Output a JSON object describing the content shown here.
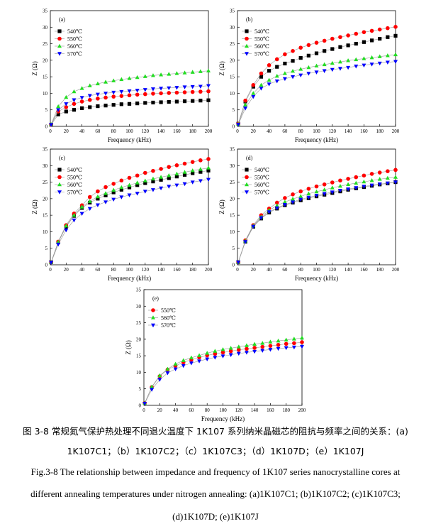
{
  "caption": {
    "cn_line1": "图 3-8  常规氮气保护热处理不同退火温度下 1K107 系列纳米晶磁芯的阻抗与频率之间的关系：(a)",
    "cn_line2": "1K107C1；（b）1K107C2；（c）1K107C3；（d）1K107D；（e）1K107J",
    "en_line1": "Fig.3-8 The relationship between impedance and frequency of 1K107 series nanocrystalline cores at",
    "en_line2": "different annealing temperatures under nitrogen annealing: (a)1K107C1; (b)1K107C2; (c)1K107C3;",
    "en_line3": "(d)1K107D; (e)1K107J"
  },
  "colors": {
    "540": "#000000",
    "550": "#ff0000",
    "560": "#22dd22",
    "570": "#0000ff"
  },
  "chart_data": [
    {
      "type": "line",
      "label": "(a)",
      "xlabel": "Frequency (kHz)",
      "ylabel": "Z (Ω)",
      "xlim": [
        0,
        200
      ],
      "ylim": [
        0,
        35
      ],
      "xticks": [
        0,
        20,
        40,
        60,
        80,
        100,
        120,
        140,
        160,
        180,
        200
      ],
      "yticks": [
        0,
        5,
        10,
        15,
        20,
        25,
        30,
        35
      ],
      "x": [
        1,
        10,
        20,
        30,
        40,
        50,
        60,
        70,
        80,
        90,
        100,
        110,
        120,
        130,
        140,
        150,
        160,
        170,
        180,
        190,
        200
      ],
      "legend_position": "top-left",
      "series": [
        {
          "name": "540℃",
          "marker": "square",
          "color": "#000000",
          "values": [
            0.5,
            3.6,
            4.5,
            5.0,
            5.5,
            5.8,
            6.1,
            6.3,
            6.5,
            6.7,
            6.8,
            6.95,
            7.1,
            7.2,
            7.3,
            7.4,
            7.5,
            7.6,
            7.7,
            7.8,
            7.9
          ]
        },
        {
          "name": "550℃",
          "marker": "circle",
          "color": "#ff0000",
          "values": [
            0.5,
            4.5,
            5.8,
            6.8,
            7.5,
            8.0,
            8.4,
            8.7,
            9.0,
            9.2,
            9.4,
            9.6,
            9.75,
            9.9,
            10.0,
            10.1,
            10.2,
            10.3,
            10.4,
            10.5,
            10.6
          ]
        },
        {
          "name": "560℃",
          "marker": "triangle-up",
          "color": "#22dd22",
          "values": [
            0.6,
            6.0,
            8.8,
            10.5,
            11.5,
            12.3,
            12.9,
            13.4,
            13.8,
            14.2,
            14.5,
            14.8,
            15.1,
            15.4,
            15.6,
            15.8,
            16.0,
            16.2,
            16.4,
            16.6,
            16.8
          ]
        },
        {
          "name": "570℃",
          "marker": "triangle-down",
          "color": "#0000ff",
          "values": [
            0.5,
            5.0,
            6.8,
            8.0,
            8.7,
            9.3,
            9.7,
            10.0,
            10.3,
            10.5,
            10.7,
            10.9,
            11.1,
            11.3,
            11.5,
            11.6,
            11.75,
            11.9,
            12.0,
            12.1,
            12.3
          ]
        }
      ]
    },
    {
      "type": "line",
      "label": "(b)",
      "xlabel": "Frequency (kHz)",
      "ylabel": "Z (Ω)",
      "xlim": [
        0,
        200
      ],
      "ylim": [
        0,
        35
      ],
      "xticks": [
        0,
        20,
        40,
        60,
        80,
        100,
        120,
        140,
        160,
        180,
        200
      ],
      "yticks": [
        0,
        5,
        10,
        15,
        20,
        25,
        30,
        35
      ],
      "x": [
        1,
        10,
        20,
        30,
        40,
        50,
        60,
        70,
        80,
        90,
        100,
        110,
        120,
        130,
        140,
        150,
        160,
        170,
        180,
        190,
        200
      ],
      "legend_position": "top-left",
      "series": [
        {
          "name": "540℃",
          "marker": "square",
          "color": "#000000",
          "values": [
            0.8,
            7.5,
            12.0,
            15.0,
            16.8,
            18.0,
            19.0,
            19.8,
            20.7,
            21.4,
            22.1,
            22.8,
            23.4,
            24.0,
            24.5,
            25.0,
            25.5,
            26.0,
            26.5,
            27.0,
            27.4
          ]
        },
        {
          "name": "550℃",
          "marker": "circle",
          "color": "#ff0000",
          "values": [
            0.8,
            7.8,
            12.5,
            16.0,
            18.5,
            20.3,
            21.8,
            22.8,
            23.8,
            24.6,
            25.3,
            25.9,
            26.5,
            27.0,
            27.5,
            28.0,
            28.5,
            28.9,
            29.3,
            29.7,
            30.1
          ]
        },
        {
          "name": "560℃",
          "marker": "triangle-up",
          "color": "#22dd22",
          "values": [
            0.7,
            6.5,
            10.0,
            12.5,
            14.0,
            15.2,
            16.0,
            16.7,
            17.3,
            17.8,
            18.3,
            18.7,
            19.1,
            19.5,
            19.9,
            20.2,
            20.5,
            20.8,
            21.1,
            21.4,
            21.7
          ]
        },
        {
          "name": "570℃",
          "marker": "triangle-down",
          "color": "#0000ff",
          "values": [
            0.6,
            5.5,
            9.0,
            11.5,
            12.8,
            13.7,
            14.4,
            15.0,
            15.5,
            16.0,
            16.4,
            16.8,
            17.2,
            17.5,
            17.8,
            18.2,
            18.5,
            18.8,
            19.1,
            19.4,
            19.6
          ]
        }
      ]
    },
    {
      "type": "line",
      "label": "(c)",
      "xlabel": "Frequency (kHz)",
      "ylabel": "Z (Ω)",
      "xlim": [
        0,
        200
      ],
      "ylim": [
        0,
        35
      ],
      "xticks": [
        0,
        20,
        40,
        60,
        80,
        100,
        120,
        140,
        160,
        180,
        200
      ],
      "yticks": [
        0,
        5,
        10,
        15,
        20,
        25,
        30,
        35
      ],
      "x": [
        1,
        10,
        20,
        30,
        40,
        50,
        60,
        70,
        80,
        90,
        100,
        110,
        120,
        130,
        140,
        150,
        160,
        170,
        180,
        190,
        200
      ],
      "legend_position": "top-left",
      "series": [
        {
          "name": "540℃",
          "marker": "square",
          "color": "#000000",
          "values": [
            0.8,
            6.8,
            11.5,
            14.8,
            17.2,
            18.8,
            20.0,
            21.0,
            21.9,
            22.7,
            23.4,
            24.1,
            24.7,
            25.2,
            25.7,
            26.2,
            26.7,
            27.2,
            27.7,
            28.1,
            28.5
          ]
        },
        {
          "name": "550℃",
          "marker": "circle",
          "color": "#ff0000",
          "values": [
            0.8,
            7.0,
            12.0,
            15.5,
            18.0,
            20.5,
            22.2,
            23.5,
            24.5,
            25.5,
            26.3,
            27.0,
            27.8,
            28.4,
            29.0,
            29.6,
            30.1,
            30.6,
            31.1,
            31.6,
            32.0
          ]
        },
        {
          "name": "560℃",
          "marker": "triangle-up",
          "color": "#22dd22",
          "values": [
            0.8,
            6.9,
            11.8,
            15.0,
            17.5,
            19.2,
            20.6,
            21.6,
            22.6,
            23.4,
            24.1,
            24.8,
            25.4,
            26.0,
            26.5,
            27.0,
            27.5,
            28.0,
            28.5,
            28.9,
            29.3
          ]
        },
        {
          "name": "570℃",
          "marker": "triangle-down",
          "color": "#0000ff",
          "values": [
            0.7,
            6.2,
            10.5,
            13.5,
            15.5,
            17.0,
            18.1,
            19.0,
            19.8,
            20.5,
            21.1,
            21.6,
            22.2,
            22.7,
            23.2,
            23.7,
            24.1,
            24.5,
            25.0,
            25.4,
            25.8
          ]
        }
      ]
    },
    {
      "type": "line",
      "label": "(d)",
      "xlabel": "Frequency (kHz)",
      "ylabel": "Z (Ω)",
      "xlim": [
        0,
        200
      ],
      "ylim": [
        0,
        35
      ],
      "xticks": [
        0,
        20,
        40,
        60,
        80,
        100,
        120,
        140,
        160,
        180,
        200
      ],
      "yticks": [
        0,
        5,
        10,
        15,
        20,
        25,
        30,
        35
      ],
      "x": [
        1,
        10,
        20,
        30,
        40,
        50,
        60,
        70,
        80,
        90,
        100,
        110,
        120,
        130,
        140,
        150,
        160,
        170,
        180,
        190,
        200
      ],
      "legend_position": "top-left",
      "series": [
        {
          "name": "540℃",
          "marker": "square",
          "color": "#000000",
          "values": [
            0.8,
            7.0,
            11.5,
            14.0,
            15.8,
            17.0,
            18.0,
            18.8,
            19.5,
            20.1,
            20.7,
            21.2,
            21.7,
            22.2,
            22.7,
            23.1,
            23.5,
            23.9,
            24.3,
            24.6,
            25.0
          ]
        },
        {
          "name": "550℃",
          "marker": "circle",
          "color": "#ff0000",
          "values": [
            0.8,
            7.4,
            12.0,
            15.0,
            17.0,
            18.8,
            20.2,
            21.3,
            22.2,
            23.0,
            23.7,
            24.3,
            24.9,
            25.5,
            26.0,
            26.5,
            27.0,
            27.5,
            27.9,
            28.3,
            28.7
          ]
        },
        {
          "name": "560℃",
          "marker": "triangle-up",
          "color": "#22dd22",
          "values": [
            0.8,
            7.2,
            11.8,
            14.5,
            16.5,
            17.9,
            19.0,
            19.9,
            20.7,
            21.5,
            22.1,
            22.7,
            23.3,
            23.8,
            24.3,
            24.7,
            25.1,
            25.5,
            25.9,
            26.2,
            26.5
          ]
        },
        {
          "name": "570℃",
          "marker": "triangle-down",
          "color": "#0000ff",
          "values": [
            0.8,
            7.0,
            11.6,
            14.2,
            16.0,
            17.2,
            18.2,
            19.0,
            19.8,
            20.4,
            21.0,
            21.5,
            22.0,
            22.5,
            22.9,
            23.3,
            23.7,
            24.1,
            24.4,
            24.7,
            25.0
          ]
        }
      ]
    },
    {
      "type": "line",
      "label": "(e)",
      "xlabel": "Frequency (kHz)",
      "ylabel": "Z (Ω)",
      "xlim": [
        0,
        200
      ],
      "ylim": [
        0,
        35
      ],
      "xticks": [
        0,
        20,
        40,
        60,
        80,
        100,
        120,
        140,
        160,
        180,
        200
      ],
      "yticks": [
        0,
        5,
        10,
        15,
        20,
        25,
        30,
        35
      ],
      "x": [
        1,
        10,
        20,
        30,
        40,
        50,
        60,
        70,
        80,
        90,
        100,
        110,
        120,
        130,
        140,
        150,
        160,
        170,
        180,
        190,
        200
      ],
      "legend_position": "top-left",
      "series": [
        {
          "name": "550℃",
          "marker": "circle",
          "color": "#ff0000",
          "values": [
            0.7,
            5.5,
            8.8,
            10.8,
            12.0,
            13.0,
            13.8,
            14.5,
            15.1,
            15.6,
            16.0,
            16.4,
            16.8,
            17.1,
            17.4,
            17.7,
            18.0,
            18.3,
            18.6,
            18.8,
            19.1
          ]
        },
        {
          "name": "560℃",
          "marker": "triangle-up",
          "color": "#22dd22",
          "values": [
            0.7,
            5.6,
            9.0,
            11.0,
            12.5,
            13.6,
            14.4,
            15.1,
            15.8,
            16.4,
            16.9,
            17.3,
            17.7,
            18.1,
            18.5,
            18.8,
            19.2,
            19.5,
            19.8,
            20.1,
            20.4
          ]
        },
        {
          "name": "570℃",
          "marker": "triangle-down",
          "color": "#0000ff",
          "values": [
            0.6,
            4.8,
            7.8,
            9.8,
            11.0,
            12.0,
            12.8,
            13.4,
            14.0,
            14.5,
            14.9,
            15.3,
            15.7,
            16.0,
            16.3,
            16.6,
            16.9,
            17.2,
            17.4,
            17.6,
            17.8
          ]
        }
      ]
    }
  ]
}
